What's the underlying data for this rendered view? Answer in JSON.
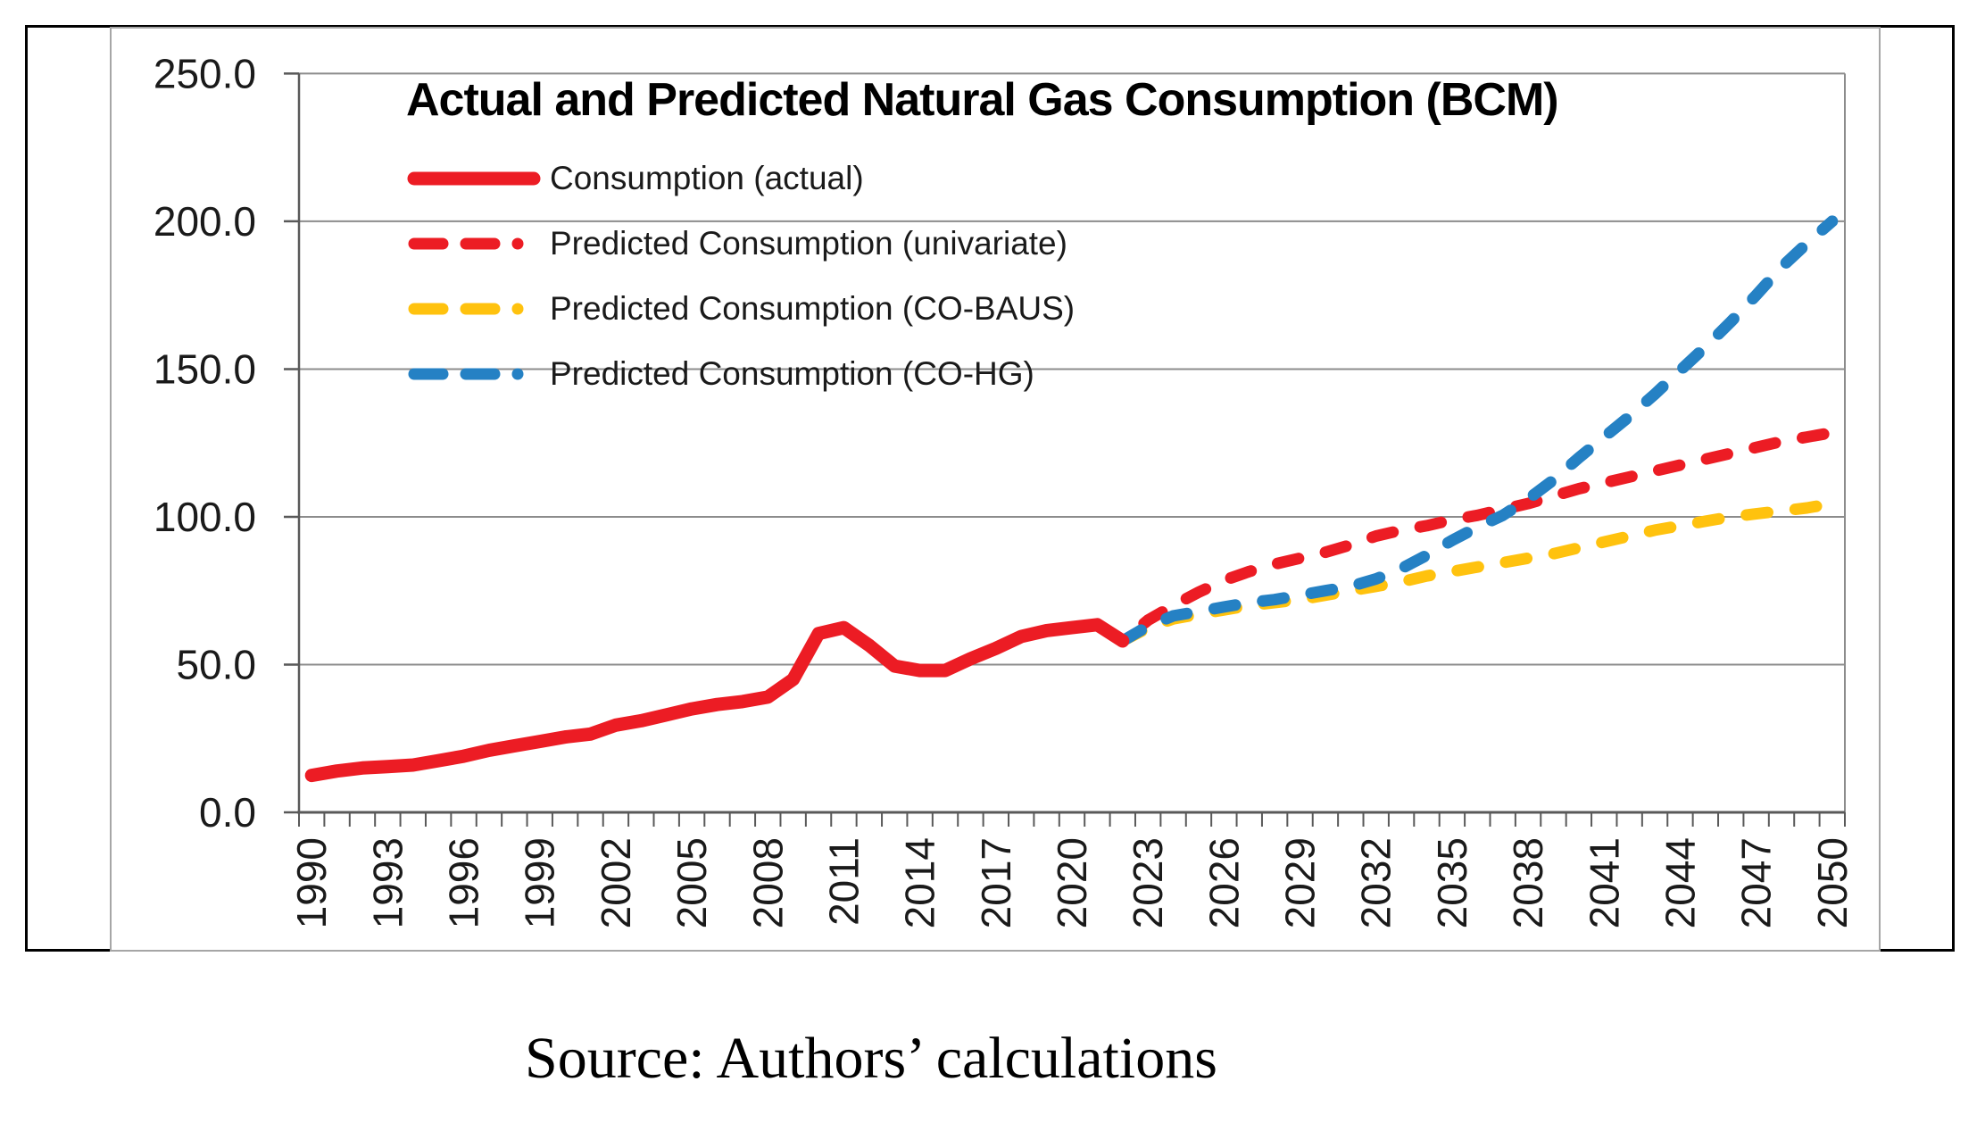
{
  "page": {
    "source_caption": "Source: Authors’ calculations"
  },
  "chart_data": {
    "type": "line",
    "title": "Actual and Predicted Natural Gas Consumption (BCM)",
    "xlabel": "",
    "ylabel": "",
    "ylim": [
      0,
      250
    ],
    "y_tick_step": 50,
    "y_tick_labels": [
      "0.0",
      "50.0",
      "100.0",
      "150.0",
      "200.0",
      "250.0"
    ],
    "x_range": [
      1990,
      2050
    ],
    "x_tick_label_step": 3,
    "x_tick_labels": [
      "1990",
      "1993",
      "1996",
      "1999",
      "2002",
      "2005",
      "2008",
      "2011",
      "2014",
      "2017",
      "2020",
      "2023",
      "2026",
      "2029",
      "2032",
      "2035",
      "2038",
      "2041",
      "2044",
      "2047",
      "2050"
    ],
    "grid": "horizontal",
    "legend_position": "top-left-inside",
    "colors": {
      "gridline": "#8c8c8c",
      "axis": "#595959",
      "tick_text": "#1a1a1a",
      "frame": "#a6a6a6"
    },
    "series": [
      {
        "name": "Consumption (actual)",
        "color": "#ec1c24",
        "style": "solid",
        "line_width": 15,
        "start_year": 1990,
        "values": [
          12.5,
          14,
          15,
          15.5,
          16,
          17.5,
          19,
          21,
          22.5,
          24,
          25.5,
          26.5,
          29.5,
          31,
          33,
          35,
          36.5,
          37.5,
          39,
          45,
          60.5,
          62.5,
          56.5,
          49.5,
          48,
          48,
          52,
          55.5,
          59.5,
          61.5,
          62.5,
          63.5,
          58
        ]
      },
      {
        "name": "Predicted Consumption (univariate)",
        "color": "#ec1c24",
        "style": "dashed",
        "line_width": 13,
        "start_year": 2022,
        "values": [
          58,
          65,
          70,
          74.5,
          78.5,
          81.5,
          84,
          86,
          88,
          90.5,
          93.5,
          95.5,
          97,
          99,
          100.5,
          102.5,
          104.5,
          107,
          109.5,
          111.5,
          113.5,
          115.5,
          117.5,
          119.5,
          121.5,
          123.5,
          125.5,
          127,
          128.5
        ]
      },
      {
        "name": "Predicted Consumption (CO-BAUS)",
        "color": "#ffc20e",
        "style": "dashed",
        "line_width": 13,
        "start_year": 2022,
        "values": [
          58,
          62.5,
          65.5,
          67,
          68.5,
          70,
          71,
          72,
          73.5,
          75,
          76.5,
          78,
          80,
          81.5,
          83,
          84.5,
          86,
          87.5,
          89.5,
          91.5,
          93.5,
          95.5,
          97,
          98.5,
          100,
          101,
          102,
          103,
          104.5
        ]
      },
      {
        "name": "Predicted Consumption (CO-HG)",
        "color": "#2581c4",
        "style": "dashed",
        "line_width": 13,
        "start_year": 2022,
        "values": [
          58,
          63,
          66.5,
          68,
          69.5,
          71,
          72,
          73.5,
          75,
          76.5,
          79,
          82.5,
          87,
          92,
          96.5,
          100.5,
          106,
          112.5,
          120,
          127,
          134,
          141.5,
          149.5,
          157.5,
          166,
          175,
          184.5,
          192.5,
          200
        ]
      }
    ]
  }
}
